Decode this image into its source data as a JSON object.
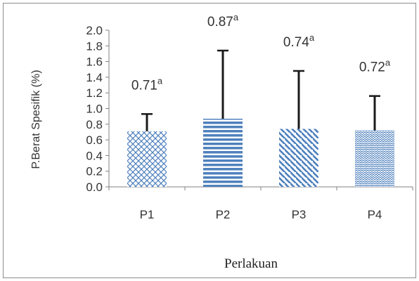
{
  "chart_data": {
    "type": "bar",
    "categories": [
      "P1",
      "P2",
      "P3",
      "P4"
    ],
    "values": [
      0.71,
      0.87,
      0.74,
      0.72
    ],
    "error_upper": [
      0.93,
      1.74,
      1.48,
      1.16
    ],
    "data_labels": [
      "0.71",
      "0.87",
      "0.74",
      "0.72"
    ],
    "superscripts": [
      "a",
      "a",
      "a",
      "a"
    ],
    "xlabel": "Perlakuan",
    "ylabel": "P.Berat Spesifik (%)",
    "ylim": [
      0,
      2.0
    ],
    "yticks": [
      "0.0",
      "0.2",
      "0.4",
      "0.6",
      "0.8",
      "1.0",
      "1.2",
      "1.4",
      "1.6",
      "1.8",
      "2.0"
    ],
    "grid": false,
    "legend": "none",
    "colors": {
      "bar": "#4f81bd",
      "error_bar": "#1a1a1a",
      "axis": "#808080"
    },
    "patterns": [
      "crosshatch",
      "horizontal-stripes",
      "diagonal-stripes",
      "zigzag"
    ]
  }
}
